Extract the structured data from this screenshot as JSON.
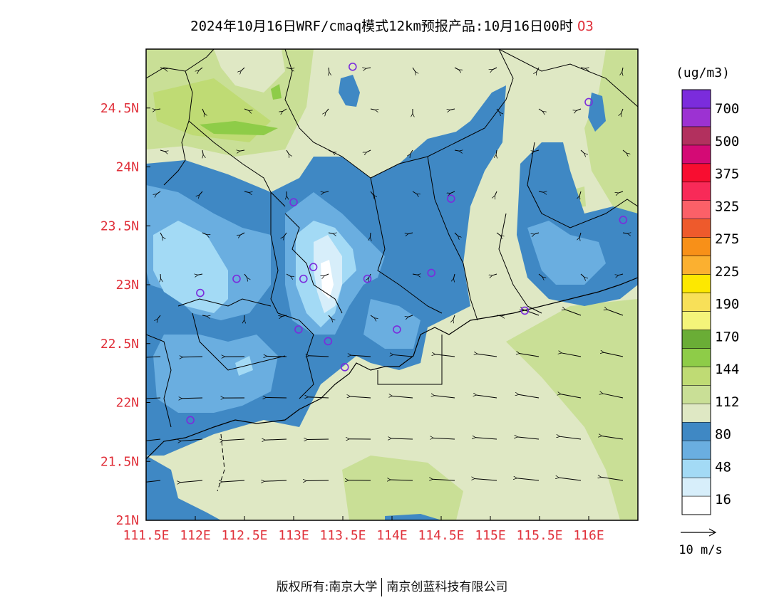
{
  "title": {
    "main": "2024年10月16日WRF/cmaq模式12km预报产品:10月16日00时",
    "species": "O3"
  },
  "footer": {
    "left": "版权所有:南京大学",
    "right": "南京创蓝科技有限公司"
  },
  "chart_data": {
    "type": "heatmap",
    "subtype": "filled-contour map with wind vectors",
    "x_ticks": [
      "111.5E",
      "112E",
      "112.5E",
      "113E",
      "113.5E",
      "114E",
      "114.5E",
      "115E",
      "115.5E",
      "116E"
    ],
    "x_values": [
      111.5,
      112,
      112.5,
      113,
      113.5,
      114,
      114.5,
      115,
      115.5,
      116
    ],
    "y_ticks": [
      "21N",
      "21.5N",
      "22N",
      "22.5N",
      "23N",
      "23.5N",
      "24N",
      "24.5N"
    ],
    "y_values": [
      21,
      21.5,
      22,
      22.5,
      23,
      23.5,
      24,
      24.5
    ],
    "xlim": [
      111.5,
      116.5
    ],
    "ylim": [
      21,
      25
    ],
    "colorbar": {
      "unit": "(ug/m3)",
      "labels": [
        "700",
        "500",
        "375",
        "325",
        "275",
        "225",
        "190",
        "170",
        "144",
        "112",
        "80",
        "48",
        "16"
      ],
      "colors": [
        "#ffffff",
        "#d7eefa",
        "#a3daf5",
        "#6aaee0",
        "#3f88c4",
        "#dfe8c4",
        "#c9df96",
        "#bfdb74",
        "#8ecc48",
        "#6aad36",
        "#f4f47a",
        "#f8e058",
        "#fde800",
        "#fbb030",
        "#f89018",
        "#ee5a2c",
        "#fb6068",
        "#f82a58",
        "#f80d30",
        "#d40a75",
        "#b2305e",
        "#9c32d2",
        "#7b2cdc"
      ]
    },
    "wind_reference": "10 m/s",
    "stations": [
      {
        "lon": 113.6,
        "lat": 24.85
      },
      {
        "lon": 116.0,
        "lat": 24.55
      },
      {
        "lon": 113.0,
        "lat": 23.7
      },
      {
        "lon": 114.6,
        "lat": 23.73
      },
      {
        "lon": 116.35,
        "lat": 23.55
      },
      {
        "lon": 113.2,
        "lat": 23.15
      },
      {
        "lon": 112.42,
        "lat": 23.05
      },
      {
        "lon": 113.1,
        "lat": 23.05
      },
      {
        "lon": 113.75,
        "lat": 23.05
      },
      {
        "lon": 114.4,
        "lat": 23.1
      },
      {
        "lon": 112.05,
        "lat": 22.93
      },
      {
        "lon": 115.35,
        "lat": 22.78
      },
      {
        "lon": 113.05,
        "lat": 22.62
      },
      {
        "lon": 114.05,
        "lat": 22.62
      },
      {
        "lon": 113.35,
        "lat": 22.52
      },
      {
        "lon": 113.52,
        "lat": 22.3
      },
      {
        "lon": 111.95,
        "lat": 21.85
      }
    ]
  }
}
